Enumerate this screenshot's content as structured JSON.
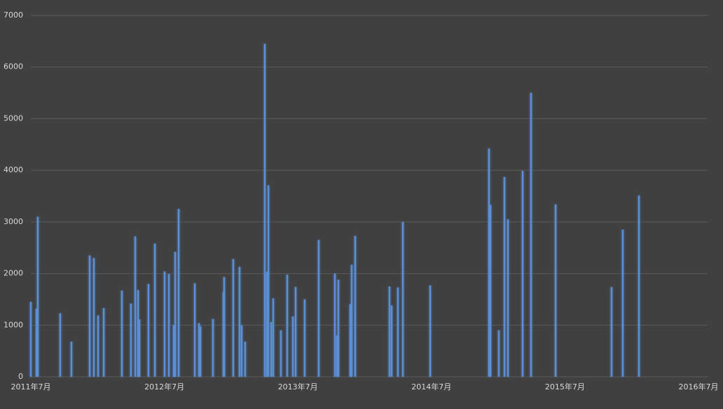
{
  "chart_data": {
    "type": "bar",
    "color": "#5b8fd6",
    "grid": true,
    "x": [
      2011.5,
      2011.542,
      2011.552,
      2011.72,
      2011.804,
      2011.941,
      2011.972,
      2012.004,
      2012.046,
      2012.182,
      2012.25,
      2012.282,
      2012.303,
      2012.313,
      2012.381,
      2012.429,
      2012.502,
      2012.534,
      2012.57,
      2012.581,
      2012.607,
      2012.728,
      2012.759,
      2012.77,
      2012.864,
      2012.943,
      2012.948,
      2013.016,
      2013.063,
      2013.079,
      2013.105,
      2013.252,
      2013.268,
      2013.279,
      2013.3,
      2013.315,
      2013.373,
      2013.42,
      2013.462,
      2013.483,
      2013.551,
      2013.656,
      2013.777,
      2013.793,
      2013.803,
      2013.892,
      2013.903,
      2013.929,
      2014.186,
      2014.202,
      2014.249,
      2014.286,
      2014.491,
      2014.931,
      2014.942,
      2015.005,
      2015.047,
      2015.073,
      2015.183,
      2015.246,
      2015.43,
      2015.849,
      2015.933,
      2016.054
    ],
    "values": [
      1450,
      1320,
      3100,
      1230,
      680,
      2350,
      2300,
      1190,
      1330,
      1670,
      1420,
      2720,
      1680,
      1110,
      1800,
      2580,
      2040,
      1990,
      1000,
      2420,
      3250,
      1810,
      1040,
      980,
      1120,
      1650,
      1930,
      2280,
      2130,
      1000,
      680,
      6450,
      2030,
      3710,
      1060,
      1520,
      900,
      1980,
      1170,
      1740,
      1500,
      2650,
      2000,
      800,
      1880,
      1410,
      2170,
      2730,
      1750,
      1380,
      1730,
      3000,
      1770,
      4420,
      3330,
      900,
      3870,
      3050,
      3990,
      5500,
      3340,
      1740,
      2850,
      3510
    ],
    "xlim": [
      2011.5,
      2016.5
    ],
    "xticks": [
      {
        "value": 2011.5,
        "label": "2011年7月"
      },
      {
        "value": 2012.5,
        "label": "2012年7月"
      },
      {
        "value": 2013.5,
        "label": "2013年7月"
      },
      {
        "value": 2014.5,
        "label": "2014年7月"
      },
      {
        "value": 2015.5,
        "label": "2015年7月"
      },
      {
        "value": 2016.5,
        "label": "2016年7月"
      }
    ],
    "ylim": [
      0,
      7000
    ],
    "yticks": [
      0,
      1000,
      2000,
      3000,
      4000,
      5000,
      6000,
      7000
    ]
  }
}
